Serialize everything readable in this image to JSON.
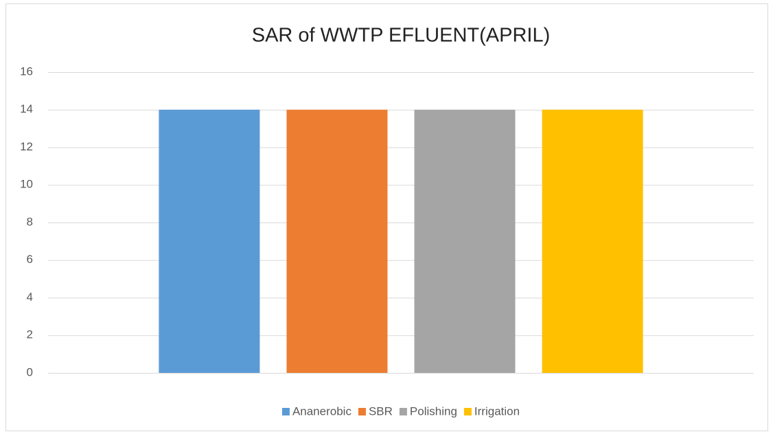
{
  "chart_data": {
    "type": "bar",
    "title": "SAR of WWTP EFLUENT(APRIL)",
    "categories": [
      null
    ],
    "series": [
      {
        "name": "Ananerobic",
        "color": "#5b9bd5",
        "values": [
          14
        ]
      },
      {
        "name": "SBR",
        "color": "#ed7d31",
        "values": [
          14
        ]
      },
      {
        "name": "Polishing",
        "color": "#a5a5a5",
        "values": [
          14
        ]
      },
      {
        "name": "Irrigation",
        "color": "#ffc000",
        "values": [
          14
        ]
      }
    ],
    "ylim": [
      0,
      16
    ],
    "yticks": [
      0,
      2,
      4,
      6,
      8,
      10,
      12,
      14,
      16
    ],
    "grid": true,
    "legend": "bottom"
  }
}
